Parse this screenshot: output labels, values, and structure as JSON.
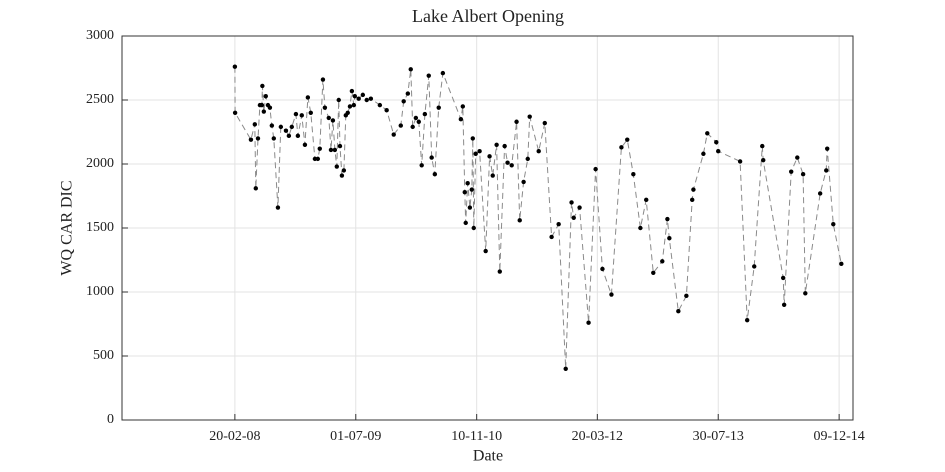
{
  "chart_data": {
    "type": "line",
    "title": "Lake Albert Opening",
    "xlabel": "Date",
    "ylabel": "WQ CAR DIC",
    "x": [
      "2008-02-20",
      "2008-02-21",
      "2008-04-26",
      "2008-05-12",
      "2008-05-16",
      "2008-05-25",
      "2008-06-02",
      "2008-06-10",
      "2008-06-12",
      "2008-06-18",
      "2008-06-26",
      "2008-07-05",
      "2008-07-13",
      "2008-07-21",
      "2008-07-29",
      "2008-08-15",
      "2008-08-27",
      "2008-09-17",
      "2008-09-29",
      "2008-10-11",
      "2008-10-28",
      "2008-11-05",
      "2008-11-21",
      "2008-12-04",
      "2008-12-16",
      "2008-12-28",
      "2009-01-14",
      "2009-01-26",
      "2009-02-03",
      "2009-02-16",
      "2009-02-24",
      "2009-03-12",
      "2009-03-21",
      "2009-03-29",
      "2009-04-06",
      "2009-04-14",
      "2009-04-22",
      "2009-04-27",
      "2009-05-05",
      "2009-05-13",
      "2009-05-21",
      "2009-05-29",
      "2009-06-07",
      "2009-06-15",
      "2009-06-23",
      "2009-06-27",
      "2009-07-13",
      "2009-07-30",
      "2009-08-15",
      "2009-09-01",
      "2009-10-08",
      "2009-11-05",
      "2009-12-04",
      "2010-01-02",
      "2010-01-14",
      "2010-01-31",
      "2010-02-12",
      "2010-02-20",
      "2010-03-05",
      "2010-03-17",
      "2010-03-29",
      "2010-04-11",
      "2010-04-27",
      "2010-05-09",
      "2010-05-22",
      "2010-06-07",
      "2010-06-24",
      "2010-09-06",
      "2010-09-14",
      "2010-09-22",
      "2010-09-26",
      "2010-10-04",
      "2010-10-13",
      "2010-10-21",
      "2010-10-25",
      "2010-10-29",
      "2010-11-06",
      "2010-11-22",
      "2010-12-17",
      "2011-01-02",
      "2011-01-15",
      "2011-01-31",
      "2011-02-13",
      "2011-03-05",
      "2011-03-17",
      "2011-04-03",
      "2011-04-23",
      "2011-05-06",
      "2011-05-22",
      "2011-06-08",
      "2011-06-16",
      "2011-07-23",
      "2011-08-17",
      "2011-09-14",
      "2011-10-13",
      "2011-11-11",
      "2011-12-05",
      "2011-12-14",
      "2012-01-07",
      "2012-02-13",
      "2012-03-13",
      "2012-04-10",
      "2012-05-17",
      "2012-06-27",
      "2012-07-21",
      "2012-08-15",
      "2012-09-13",
      "2012-10-07",
      "2012-11-05",
      "2012-12-12",
      "2013-01-02",
      "2013-01-10",
      "2013-02-16",
      "2013-03-21",
      "2013-04-14",
      "2013-04-19",
      "2013-05-30",
      "2013-06-15",
      "2013-07-22",
      "2013-07-30",
      "2013-10-28",
      "2013-11-26",
      "2013-12-25",
      "2014-01-27",
      "2014-01-31",
      "2014-04-23",
      "2014-04-27",
      "2014-05-26",
      "2014-06-20",
      "2014-07-14",
      "2014-07-23",
      "2014-09-22",
      "2014-10-17",
      "2014-10-21",
      "2014-11-15",
      "2014-12-18"
    ],
    "values": [
      2760,
      2400,
      2190,
      2310,
      1810,
      2200,
      2460,
      2460,
      2610,
      2410,
      2530,
      2460,
      2440,
      2300,
      2200,
      1660,
      2290,
      2260,
      2220,
      2290,
      2390,
      2220,
      2380,
      2150,
      2520,
      2400,
      2040,
      2040,
      2120,
      2660,
      2440,
      2360,
      2110,
      2340,
      2110,
      1980,
      2500,
      2140,
      1910,
      1950,
      2380,
      2400,
      2450,
      2570,
      2460,
      2530,
      2510,
      2540,
      2500,
      2510,
      2460,
      2420,
      2230,
      2300,
      2490,
      2550,
      2740,
      2290,
      2360,
      2330,
      1990,
      2390,
      2690,
      2050,
      1920,
      2440,
      2710,
      2350,
      2450,
      1780,
      1540,
      1850,
      1660,
      1800,
      2200,
      1500,
      2080,
      2100,
      1320,
      2060,
      1910,
      2150,
      1160,
      2140,
      2010,
      1990,
      2330,
      1560,
      1860,
      2040,
      2370,
      2100,
      2320,
      1430,
      1530,
      400,
      1700,
      1580,
      1660,
      760,
      1960,
      1180,
      980,
      2130,
      2190,
      1920,
      1500,
      1720,
      1150,
      1240,
      1570,
      1420,
      850,
      970,
      1720,
      1800,
      2080,
      2240,
      2170,
      2100,
      2020,
      780,
      1200,
      2140,
      2030,
      1110,
      900,
      1940,
      2050,
      1920,
      990,
      1770,
      1950,
      2120,
      1530,
      1220
    ],
    "line_color": "#8a8a8a",
    "marker_color": "#000000",
    "xlim": [
      "2006-11-13",
      "2015-02-04"
    ],
    "xticks": [
      {
        "value": "2008-02-20",
        "label": "20-02-08"
      },
      {
        "value": "2009-07-01",
        "label": "01-07-09"
      },
      {
        "value": "2010-11-10",
        "label": "10-11-10"
      },
      {
        "value": "2012-03-20",
        "label": "20-03-12"
      },
      {
        "value": "2013-07-30",
        "label": "30-07-13"
      },
      {
        "value": "2014-12-09",
        "label": "09-12-14"
      }
    ],
    "ylim": [
      0,
      3000
    ],
    "yticks": [
      0,
      500,
      1000,
      1500,
      2000,
      2500,
      3000
    ],
    "grid": true
  }
}
